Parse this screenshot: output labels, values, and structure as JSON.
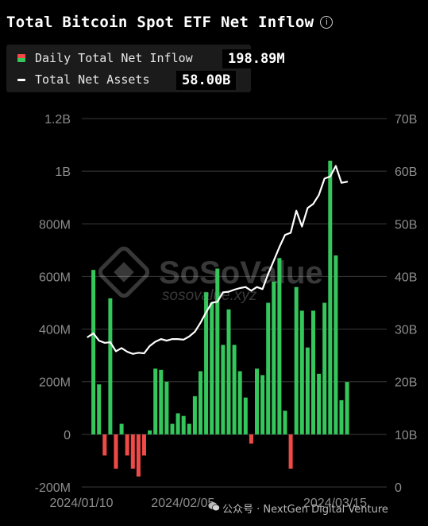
{
  "title": "Total Bitcoin Spot ETF Net Inflow",
  "legend": {
    "inflow_label": "Daily Total Net Inflow",
    "inflow_value": "198.89M",
    "assets_label": "Total Net Assets",
    "assets_value": "58.00B"
  },
  "watermark": {
    "brand": "SoSoValue",
    "site": "sosovalue.xyz",
    "footer": "公众号 · NextGen Digital Venture",
    "footer_icon": "wechat-icon"
  },
  "colors": {
    "positive": "#35c65c",
    "negative": "#ef4a47",
    "line": "#ffffff",
    "grid": "#3a3a3a",
    "axis_text": "#8c8c8c"
  },
  "chart_data": {
    "type": "bar",
    "title": "Total Bitcoin Spot ETF Net Inflow",
    "left_axis": {
      "ticks": [
        "1.2B",
        "1B",
        "800M",
        "600M",
        "400M",
        "200M",
        "0",
        "-200M"
      ],
      "tick_values": [
        1200,
        1000,
        800,
        600,
        400,
        200,
        0,
        -200
      ],
      "range": [
        -200,
        1200
      ],
      "unit": "M USD"
    },
    "right_axis": {
      "ticks": [
        "70B",
        "60B",
        "50B",
        "40B",
        "30B",
        "20B",
        "10B",
        "0"
      ],
      "tick_values": [
        70,
        60,
        50,
        40,
        30,
        20,
        10,
        0
      ],
      "range": [
        0,
        70
      ],
      "unit": "B USD"
    },
    "x_labels": [
      "2024/01/10",
      "2024/02/05",
      "2024/03/15"
    ],
    "x_label_indices": [
      0,
      18,
      45
    ],
    "grid": true,
    "series": [
      {
        "name": "Daily Total Net Inflow",
        "kind": "bar",
        "axis": "left",
        "values": [
          0,
          625,
          190,
          -80,
          517,
          -130,
          40,
          -80,
          -130,
          -160,
          -80,
          15,
          250,
          245,
          200,
          40,
          80,
          70,
          40,
          145,
          240,
          540,
          500,
          630,
          340,
          475,
          340,
          240,
          140,
          -35,
          250,
          225,
          500,
          580,
          670,
          90,
          -130,
          560,
          470,
          330,
          470,
          230,
          500,
          1040,
          680,
          130,
          198.89
        ]
      },
      {
        "name": "Total Net Assets",
        "kind": "line",
        "axis": "right",
        "values": [
          28.5,
          29.2,
          27.8,
          27.4,
          27.5,
          25.8,
          26.4,
          25.7,
          25.3,
          25.5,
          25.4,
          26.8,
          27.6,
          28.1,
          27.8,
          28.1,
          28.1,
          28.0,
          28.6,
          29.5,
          31.2,
          33.2,
          35.0,
          35.2,
          37.0,
          37.1,
          37.5,
          37.8,
          38.0,
          37.3,
          38.0,
          37.6,
          40.5,
          43.0,
          45.6,
          47.9,
          48.3,
          52.5,
          49.5,
          53.0,
          53.8,
          55.5,
          58.6,
          59.0,
          61.0,
          57.8,
          58.0
        ]
      }
    ]
  }
}
